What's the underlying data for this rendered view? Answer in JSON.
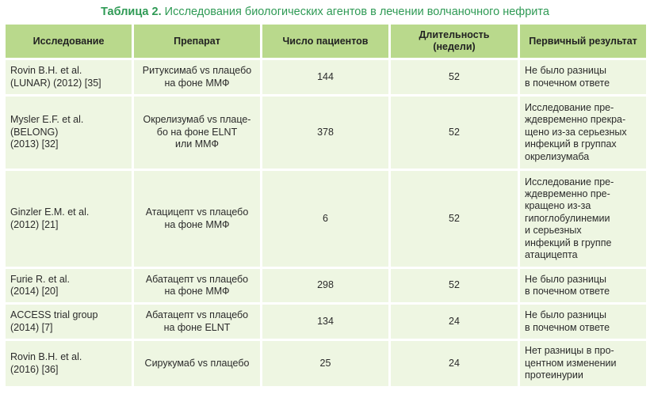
{
  "caption": {
    "label": "Таблица 2.",
    "text": "Исследования биологических агентов в лечении волчаночного нефрита"
  },
  "table": {
    "headers": [
      "Исследование",
      "Препарат",
      "Число пациентов",
      "Длительность\n(недели)",
      "Первичный результат"
    ],
    "rows": [
      {
        "study": "Rovin B.H. et al.\n(LUNAR) (2012) [35]",
        "drug": "Ритуксимаб vs плацебо\nна фоне ММФ",
        "patients": "144",
        "duration": "52",
        "result": "Не было разницы\nв почечном ответе"
      },
      {
        "study": "Mysler E.F. et al.\n(BELONG)\n(2013) [32]",
        "drug": "Окрелизумаб vs плаце-\nбо на фоне ELNT\nили ММФ",
        "patients": "378",
        "duration": "52",
        "result": "Исследование пре-\nждевременно прекра-\nщено из-за серьезных\nинфекций в группах\nокрелизумаба"
      },
      {
        "study": "Ginzler E.M. et al.\n(2012) [21]",
        "drug": "Атацицепт vs плацебо\nна фоне ММФ",
        "patients": "6",
        "duration": "52",
        "result": "Исследование пре-\nждевременно пре-\nкращено из-за\nгипоглобулинемии\nи серьезных\nинфекций в группе\nатацицепта"
      },
      {
        "study": "Furie R. et al.\n(2014) [20]",
        "drug": "Абатацепт vs плацебо\nна фоне ММФ",
        "patients": "298",
        "duration": "52",
        "result": "Не было разницы\nв почечном ответе"
      },
      {
        "study": "ACCESS trial group\n(2014) [7]",
        "drug": "Абатацепт vs плацебо\nна фоне ELNT",
        "patients": "134",
        "duration": "24",
        "result": "Не было разницы\nв почечном ответе"
      },
      {
        "study": "Rovin B.H. et al.\n(2016) [36]",
        "drug": "Сирукумаб vs плацебо",
        "patients": "25",
        "duration": "24",
        "result": "Нет разницы в про-\nцентном изменении\nпротеинурии"
      }
    ]
  }
}
